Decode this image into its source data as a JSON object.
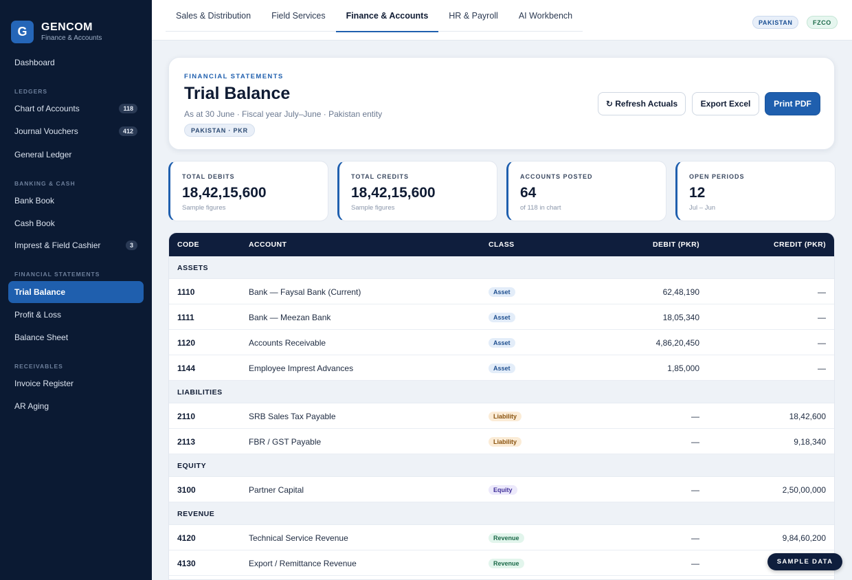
{
  "brand": {
    "logo_letter": "G",
    "name": "GENCOM",
    "subtitle": "Finance & Accounts"
  },
  "sidebar": {
    "dashboard": "Dashboard",
    "sections": {
      "ledgers": "LEDGERS",
      "banking": "BANKING & CASH",
      "statements": "FINANCIAL STATEMENTS",
      "receivables": "RECEIVABLES"
    },
    "items": [
      {
        "label": "Chart of Accounts",
        "count": "118"
      },
      {
        "label": "Journal Vouchers",
        "count": "412"
      },
      {
        "label": "General Ledger"
      },
      {
        "label": "Bank Book"
      },
      {
        "label": "Cash Book"
      },
      {
        "label": "Imprest & Field Cashier",
        "count": "3"
      },
      {
        "label": "Trial Balance",
        "active": true
      },
      {
        "label": "Profit & Loss"
      },
      {
        "label": "Balance Sheet"
      },
      {
        "label": "Invoice Register"
      },
      {
        "label": "AR Aging"
      }
    ]
  },
  "topbar": {
    "tabs": [
      "Sales & Distribution",
      "Field Services",
      "Finance & Accounts",
      "HR & Payroll",
      "AI Workbench"
    ],
    "active_tab": "Finance & Accounts",
    "region_pill": "PAKISTAN",
    "entity_pill": "FZCO"
  },
  "header": {
    "eyebrow": "FINANCIAL STATEMENTS",
    "title": "Trial Balance",
    "subtitle": "As at 30 June · Fiscal year July–June · Pakistan entity",
    "entity_badge": "PAKISTAN · PKR",
    "buttons": {
      "refresh": "↻ Refresh Actuals",
      "export": "Export Excel",
      "print": "Print PDF"
    }
  },
  "stats": [
    {
      "label": "TOTAL DEBITS",
      "value": "18,42,15,600",
      "note": "Sample figures"
    },
    {
      "label": "TOTAL CREDITS",
      "value": "18,42,15,600",
      "note": "Sample figures"
    },
    {
      "label": "ACCOUNTS POSTED",
      "value": "64",
      "note": "of 118 in chart"
    },
    {
      "label": "OPEN PERIODS",
      "value": "12",
      "note": "Jul – Jun"
    }
  ],
  "table": {
    "headers": {
      "code": "CODE",
      "account": "ACCOUNT",
      "class": "CLASS",
      "debit": "DEBIT (PKR)",
      "credit": "CREDIT (PKR)"
    },
    "sections": [
      {
        "title": "ASSETS",
        "rows": [
          {
            "code": "1110",
            "account": "Bank — Faysal Bank (Current)",
            "class": "Asset",
            "debit": "62,48,190",
            "credit": "—"
          },
          {
            "code": "1111",
            "account": "Bank — Meezan Bank",
            "class": "Asset",
            "debit": "18,05,340",
            "credit": "—"
          },
          {
            "code": "1120",
            "account": "Accounts Receivable",
            "class": "Asset",
            "debit": "4,86,20,450",
            "credit": "—"
          },
          {
            "code": "1144",
            "account": "Employee Imprest Advances",
            "class": "Asset",
            "debit": "1,85,000",
            "credit": "—"
          }
        ]
      },
      {
        "title": "LIABILITIES",
        "rows": [
          {
            "code": "2110",
            "account": "SRB Sales Tax Payable",
            "class": "Liability",
            "debit": "—",
            "credit": "18,42,600"
          },
          {
            "code": "2113",
            "account": "FBR / GST Payable",
            "class": "Liability",
            "debit": "—",
            "credit": "9,18,340"
          }
        ]
      },
      {
        "title": "EQUITY",
        "rows": [
          {
            "code": "3100",
            "account": "Partner Capital",
            "class": "Equity",
            "debit": "—",
            "credit": "2,50,00,000"
          }
        ]
      },
      {
        "title": "REVENUE",
        "rows": [
          {
            "code": "4120",
            "account": "Technical Service Revenue",
            "class": "Revenue",
            "debit": "—",
            "credit": "9,84,60,200"
          },
          {
            "code": "4130",
            "account": "Export / Remittance Revenue",
            "class": "Revenue",
            "debit": "—",
            "credit": ""
          }
        ]
      }
    ]
  },
  "sample_badge": "SAMPLE DATA",
  "colors": {
    "sidebar_bg": "#0b1a33",
    "accent": "#1f5fae",
    "table_header_bg": "#0f1e3d"
  }
}
